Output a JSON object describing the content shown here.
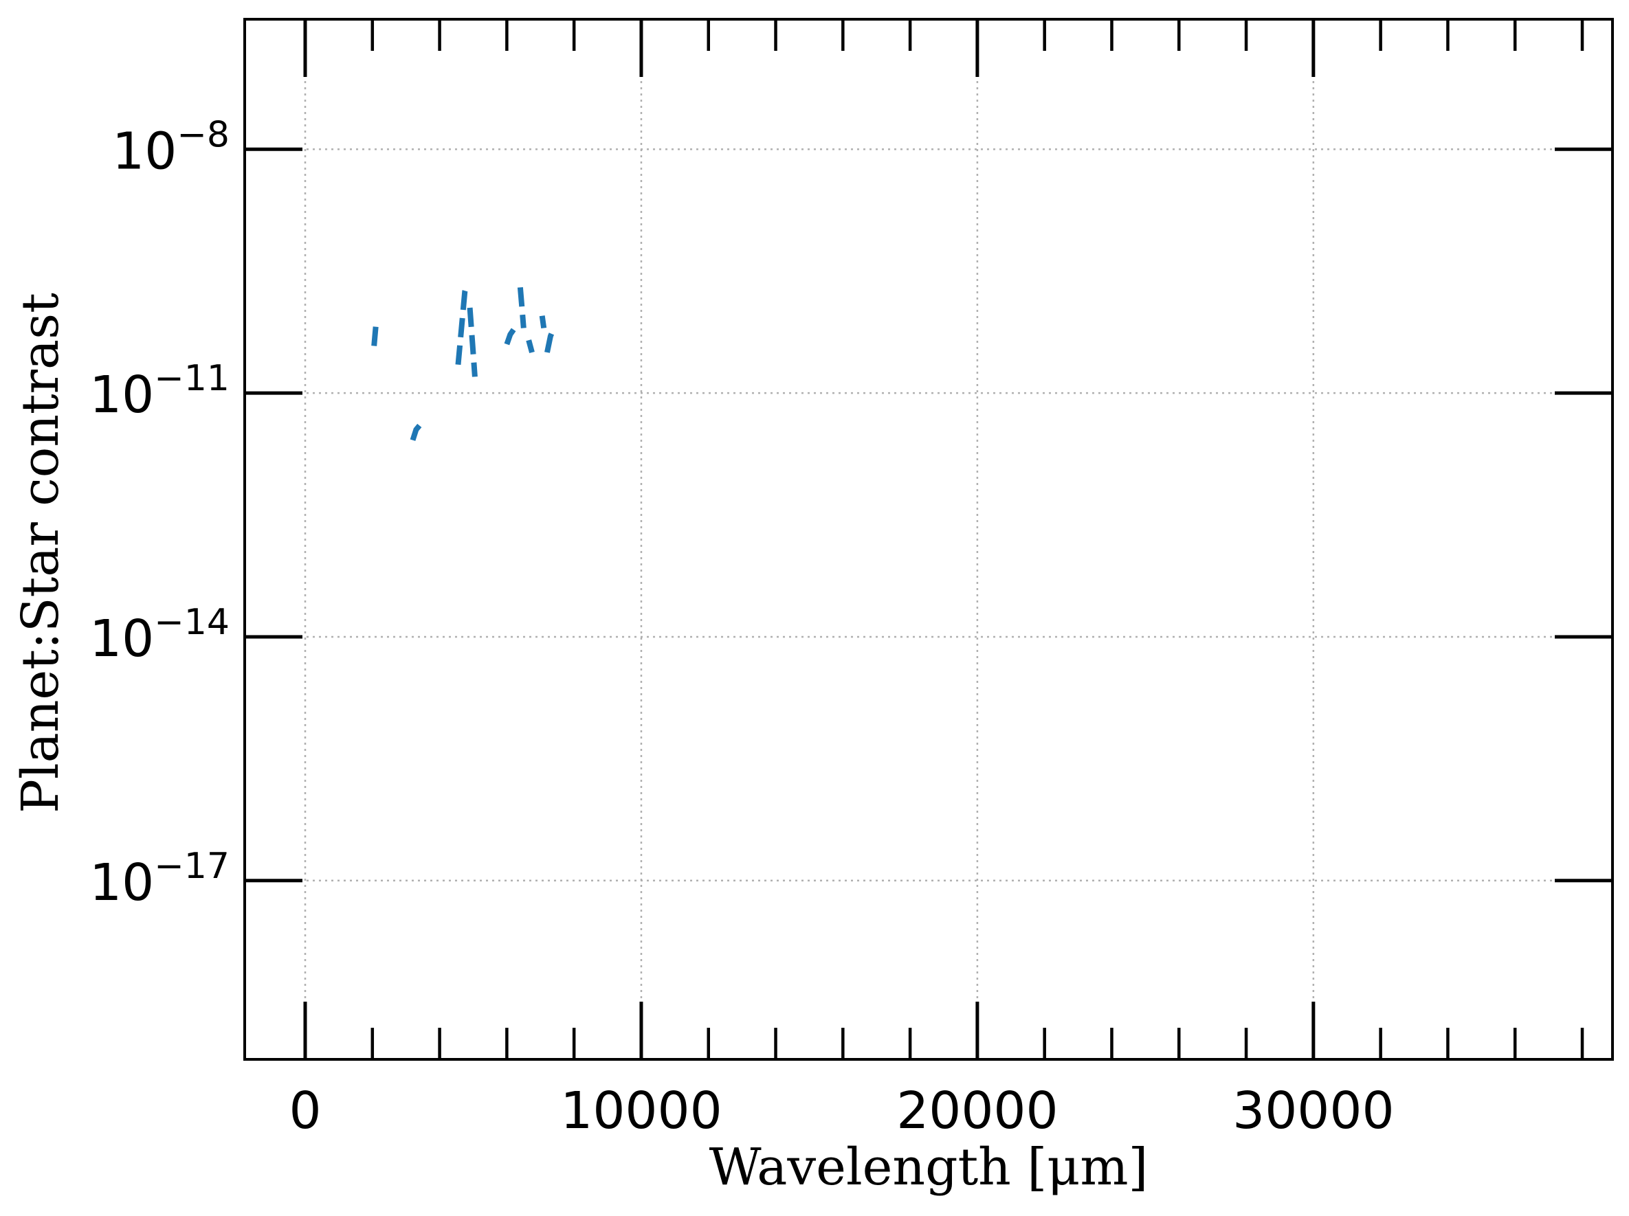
{
  "chart_data": {
    "type": "line",
    "xlabel": "Wavelength [μm]",
    "ylabel": "Planet:Star contrast",
    "xlim": [
      -1800,
      38900
    ],
    "ylim": [
      -19.2,
      -6.4
    ],
    "yscale": "log",
    "grid": true,
    "x_ticks": [
      {
        "value": 0,
        "label": "0"
      },
      {
        "value": 10000,
        "label": "10000"
      },
      {
        "value": 20000,
        "label": "20000"
      },
      {
        "value": 30000,
        "label": "30000"
      }
    ],
    "x_minor_ticks": [
      2000,
      4000,
      6000,
      8000,
      12000,
      14000,
      16000,
      18000,
      22000,
      24000,
      26000,
      28000,
      32000,
      34000,
      36000,
      38000
    ],
    "y_ticks": [
      {
        "value": -8,
        "base": "10",
        "exp": "−8"
      },
      {
        "value": -11,
        "base": "10",
        "exp": "−11"
      },
      {
        "value": -14,
        "base": "10",
        "exp": "−14"
      },
      {
        "value": -17,
        "base": "10",
        "exp": "−17"
      }
    ],
    "series": [
      {
        "color": "#1f77b4",
        "style": "dashed",
        "segments": [
          {
            "x": [
              2050,
              2100,
              2200
            ],
            "y": [
              -10.42,
              -10.18,
              -10.1
            ]
          },
          {
            "x": [
              3200,
              3300,
              3400
            ],
            "y": [
              -11.58,
              -11.45,
              -11.4
            ]
          },
          {
            "x": [
              4550,
              4650,
              4750,
              4800
            ],
            "y": [
              -10.65,
              -10.2,
              -9.75,
              -9.68
            ]
          },
          {
            "x": [
              4900,
              4980,
              5050
            ],
            "y": [
              -9.95,
              -10.4,
              -10.8
            ]
          },
          {
            "x": [
              6000,
              6100,
              6200
            ],
            "y": [
              -10.4,
              -10.28,
              -10.22
            ]
          },
          {
            "x": [
              6400,
              6450,
              6500
            ],
            "y": [
              -9.7,
              -9.95,
              -10.2
            ]
          },
          {
            "x": [
              6650,
              6750
            ],
            "y": [
              -10.35,
              -10.5
            ]
          },
          {
            "x": [
              7050,
              7100
            ],
            "y": [
              -10.05,
              -10.2
            ]
          },
          {
            "x": [
              7200,
              7300,
              7400
            ],
            "y": [
              -10.5,
              -10.3,
              -10.2
            ]
          }
        ]
      }
    ]
  }
}
